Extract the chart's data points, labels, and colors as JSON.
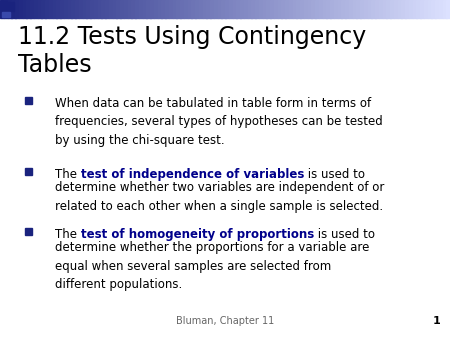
{
  "title_line1": "11.2 Tests Using Contingency",
  "title_line2": "Tables",
  "title_fontsize": 17,
  "title_color": "#000000",
  "background_color": "#ffffff",
  "header_colors": [
    "#1a237e",
    "#283593",
    "#5c6bc0",
    "#9fa8da",
    "#c5cae9",
    "#e8eaf6",
    "#f5f5ff"
  ],
  "footer_text": "Bluman, Chapter 11",
  "footer_page": "1",
  "bullet_color": "#1a237e",
  "bullet1_text": "When data can be tabulated in table form in terms of\nfrequencies, several types of hypotheses can be tested\nby using the chi-square test.",
  "bullet2_pre": "The ",
  "bullet2_bold": "test of independence of variables",
  "bullet2_post": " is used to\ndetermine whether two variables are independent of or\nrelated to each other when a single sample is selected.",
  "bullet3_pre": "The ",
  "bullet3_bold": "test of homogeneity of proportions",
  "bullet3_post": " is used to\ndetermine whether the proportions for a variable are\nequal when several samples are selected from\ndifferent populations.",
  "bold_color": "#00008b",
  "text_color": "#000000",
  "body_fontsize": 8.5,
  "footer_fontsize": 7
}
